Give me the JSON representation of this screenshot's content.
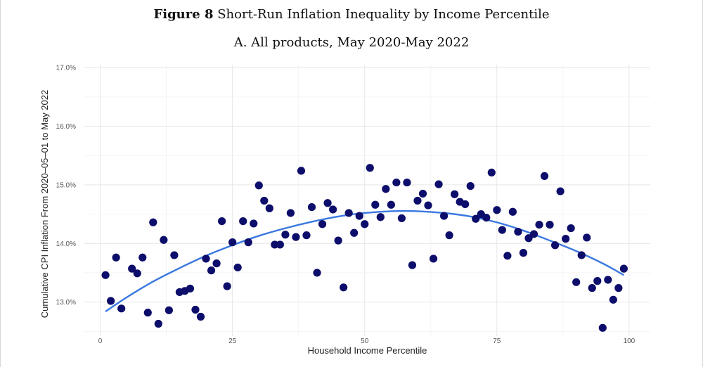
{
  "figure": {
    "label": "Figure 8",
    "title": "Short-Run Inflation Inequality by Income Percentile",
    "subtitle": "A. All products, May 2020-May 2022"
  },
  "chart_data": {
    "type": "scatter",
    "xlabel": "Household Income Percentile",
    "ylabel": "Cumulative CPI Inflation From 2020–05–01 to May 2022",
    "xlim": [
      -3,
      104
    ],
    "ylim": [
      12.42,
      17.05
    ],
    "x_ticks": [
      0,
      25,
      50,
      75,
      100
    ],
    "x_tick_labels": [
      "0",
      "25",
      "50",
      "75",
      "100"
    ],
    "y_ticks": [
      13,
      14,
      15,
      16,
      17
    ],
    "y_tick_labels": [
      "13.0%",
      "14.0%",
      "15.0%",
      "16.0%",
      "17.0%"
    ],
    "grid": true,
    "point_color": "#0d0d6b",
    "fit_color": "#3a78e0",
    "points": {
      "x": [
        1,
        2,
        3,
        4,
        6,
        7,
        8,
        9,
        10,
        11,
        12,
        13,
        14,
        15,
        16,
        17,
        18,
        19,
        20,
        21,
        22,
        23,
        24,
        25,
        26,
        27,
        28,
        29,
        30,
        31,
        32,
        33,
        34,
        35,
        36,
        37,
        38,
        39,
        40,
        41,
        42,
        43,
        44,
        45,
        46,
        47,
        48,
        49,
        50,
        51,
        52,
        53,
        54,
        55,
        56,
        57,
        58,
        59,
        60,
        61,
        62,
        63,
        64,
        65,
        66,
        67,
        68,
        69,
        70,
        71,
        72,
        73,
        74,
        75,
        76,
        77,
        78,
        79,
        80,
        81,
        82,
        83,
        84,
        85,
        86,
        87,
        88,
        89,
        90,
        91,
        92,
        93,
        94,
        95,
        96,
        97,
        98,
        99
      ],
      "y": [
        13.46,
        13.02,
        13.76,
        12.89,
        13.57,
        13.49,
        13.76,
        12.82,
        14.36,
        12.63,
        14.06,
        12.86,
        13.8,
        13.17,
        13.19,
        13.23,
        12.87,
        12.75,
        13.74,
        13.54,
        13.66,
        14.38,
        13.27,
        14.02,
        13.59,
        14.38,
        14.02,
        14.34,
        14.99,
        14.73,
        14.6,
        13.98,
        13.98,
        14.15,
        14.52,
        14.11,
        15.24,
        14.14,
        14.62,
        13.5,
        14.33,
        14.69,
        14.58,
        14.05,
        13.25,
        14.52,
        14.18,
        14.47,
        14.33,
        15.29,
        14.66,
        14.45,
        14.93,
        14.66,
        15.04,
        14.43,
        15.04,
        13.63,
        14.73,
        14.85,
        14.65,
        13.74,
        15.01,
        14.47,
        14.14,
        14.84,
        14.71,
        14.67,
        14.98,
        14.42,
        14.5,
        14.44,
        15.21,
        14.57,
        14.23,
        13.79,
        14.54,
        14.2,
        13.84,
        14.09,
        14.16,
        14.32,
        15.15,
        14.32,
        13.97,
        14.89,
        14.08,
        14.26,
        13.34,
        13.8,
        14.1,
        13.24,
        13.36,
        12.56,
        13.38,
        13.04,
        13.24,
        13.57
      ]
    },
    "fit_line": {
      "x": [
        1,
        5,
        10,
        15,
        20,
        25,
        30,
        35,
        40,
        45,
        50,
        55,
        60,
        65,
        70,
        75,
        80,
        85,
        90,
        95,
        99
      ],
      "y": [
        12.84,
        13.08,
        13.35,
        13.58,
        13.79,
        13.97,
        14.13,
        14.26,
        14.37,
        14.46,
        14.52,
        14.55,
        14.55,
        14.52,
        14.46,
        14.36,
        14.22,
        14.05,
        13.87,
        13.66,
        13.46
      ]
    }
  }
}
